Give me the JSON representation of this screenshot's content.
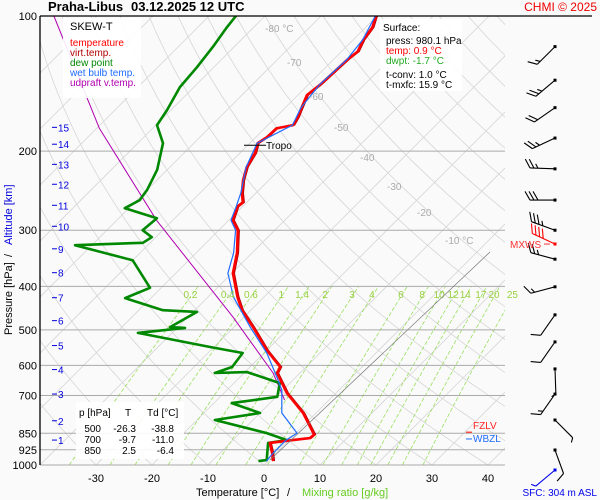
{
  "header": {
    "station": "Praha-Libus",
    "datetime": "03.12.2025 12 UTC",
    "copyright": "CHMI © 2025"
  },
  "legend": {
    "title": "SKEW-T",
    "items": [
      {
        "label": "temperature",
        "color": "#ff0000"
      },
      {
        "label": "virt.temp.",
        "color": "#b00000"
      },
      {
        "label": "dew point",
        "color": "#008800"
      },
      {
        "label": "wet bulb temp.",
        "color": "#1e6cff"
      },
      {
        "label": "udpraft v.temp.",
        "color": "#b000b0"
      }
    ]
  },
  "surface": {
    "title": "Surface:",
    "press": "press: 980.1 hPa",
    "temp": "temp: 0.9 °C",
    "dwpt": "dwpt: -1.7 °C",
    "tconv": "t-conv: 1.0 °C",
    "tmxfc": "t-mxfc: 15.9 °C"
  },
  "table": {
    "headers": [
      "p [hPa]",
      "T",
      "Td [°C]"
    ],
    "rows": [
      [
        "500",
        "-26.3",
        "-38.8"
      ],
      [
        "700",
        "-9.7",
        "-11.0"
      ],
      [
        "850",
        "2.5",
        "-6.4"
      ]
    ]
  },
  "levels": {
    "mxws": "MXWS",
    "fzlv": "FZLV",
    "wbzl": "WBZL",
    "tropo": "Tropo",
    "tropo_p": 194
  },
  "footer": {
    "sfc": "SFC: 304 m ASL"
  },
  "chart_data": {
    "type": "line",
    "subtype": "skew-T log-p",
    "xlabel": "Temperature [°C]",
    "xlabel_sep": "/",
    "xlabel2": "Mixing ratio [g/kg]",
    "ylabel": "Pressure [hPa]",
    "ylabel_sep": "/",
    "ylabel2": "Altitude [km]",
    "x_ticks": [
      -30,
      -20,
      -10,
      0,
      10,
      20,
      30,
      40
    ],
    "y_ticks": [
      100,
      200,
      300,
      400,
      500,
      600,
      700,
      850,
      925,
      1000
    ],
    "y_scale": "log",
    "ylim": [
      1000,
      100
    ],
    "xlim_at_1000hPa": [
      -40,
      45
    ],
    "altitude_ticks_km": [
      1,
      2,
      3,
      4,
      5,
      6,
      7,
      8,
      9,
      10,
      11,
      12,
      13,
      14,
      15
    ],
    "altitude_tick_pressures": [
      880,
      797,
      695,
      613,
      542,
      477,
      424,
      373,
      330,
      294,
      264,
      237,
      214,
      193,
      177
    ],
    "isotherm_labels": [
      "-80 °C",
      "-70",
      "-60",
      "-50",
      "-40",
      "-30",
      "-20",
      "-10 °C"
    ],
    "isotherm_label_values": [
      -80,
      -70,
      -60,
      -50,
      -40,
      -30,
      -20,
      -10
    ],
    "mixing_ratio_labels": [
      "0.2",
      "0.4",
      "0.6",
      "1",
      "1.4",
      "2",
      "3",
      "4",
      "6",
      "8",
      "10",
      "12",
      "14",
      "17",
      "20",
      "25"
    ],
    "colors": {
      "temp": "#ff0000",
      "virt": "#b00000",
      "dew": "#008800",
      "wetbulb": "#1e6cff",
      "parcel": "#b000b0",
      "mixing": "#99e060",
      "grid": "#d6d6d6",
      "isobar": "#aaaaaa",
      "alt": "#0000dd"
    },
    "series": [
      {
        "name": "temperature",
        "p": [
          100,
          106,
          113,
          120,
          125,
          134,
          142,
          150,
          160,
          168,
          175,
          178,
          186,
          192,
          202,
          217,
          232,
          248,
          260,
          266,
          285,
          300,
          337,
          374,
          422,
          452,
          493,
          555,
          605,
          624,
          691,
          766,
          855,
          871,
          880,
          893,
          940,
          980
        ],
        "t": [
          -60.2,
          -58.8,
          -58.2,
          -57.1,
          -57.5,
          -57.7,
          -57.9,
          -58.4,
          -57.1,
          -56.1,
          -55.5,
          -57.9,
          -58.0,
          -58.6,
          -57.3,
          -56.3,
          -54.6,
          -52.5,
          -50.7,
          -50.9,
          -49.3,
          -46.6,
          -42.7,
          -39.8,
          -34.8,
          -31.6,
          -26.6,
          -20.0,
          -14.6,
          -14.1,
          -8.8,
          -2.3,
          3.5,
          3.4,
          0.7,
          -2.9,
          -0.7,
          0.9
        ]
      },
      {
        "name": "dew point",
        "p": [
          100,
          106,
          117,
          130,
          144,
          162,
          175,
          192,
          220,
          244,
          257,
          268,
          282,
          300,
          311,
          320,
          324,
          350,
          403,
          425,
          452,
          456,
          493,
          495,
          508,
          546,
          563,
          605,
          624,
          621,
          657,
          705,
          728,
          766,
          794,
          849,
          880,
          893,
          975,
          980
        ],
        "t": [
          -85.2,
          -84.8,
          -83.8,
          -83.0,
          -82.5,
          -80.7,
          -79.8,
          -75.5,
          -71.8,
          -70.0,
          -69.5,
          -70.7,
          -63.2,
          -63.6,
          -60.7,
          -61.3,
          -73.0,
          -60.0,
          -52.0,
          -54.6,
          -45.7,
          -39.3,
          -41.4,
          -38.6,
          -46.1,
          -30.7,
          -23.8,
          -23.2,
          -25.2,
          -19.6,
          -11.8,
          -9.8,
          -16.8,
          -10.0,
          -16.8,
          -5.2,
          -0.4,
          -3.2,
          -0.4,
          -1.7
        ]
      },
      {
        "name": "wet bulb temp.",
        "p": [
          100,
          113,
          125,
          142,
          160,
          175,
          192,
          217,
          248,
          266,
          285,
          300,
          337,
          374,
          422,
          493,
          563,
          637,
          681,
          766,
          849,
          880,
          940,
          980
        ],
        "t": [
          -60.3,
          -58.3,
          -57.6,
          -58.0,
          -57.2,
          -55.6,
          -58.7,
          -56.4,
          -52.7,
          -51.1,
          -49.6,
          -47.0,
          -43.3,
          -40.7,
          -35.5,
          -27.1,
          -19.5,
          -13.4,
          -10.2,
          -6.1,
          0.2,
          -0.5,
          -0.5,
          -0.3
        ]
      },
      {
        "name": "udpraft v.temp.",
        "p": [
          100,
          178,
          285,
          468,
          624,
          717
        ],
        "t": [
          -117.7,
          -89.5,
          -62.9,
          -32.0,
          -14.8,
          -7.9
        ]
      }
    ],
    "winds": [
      {
        "p": 117,
        "dir": 225,
        "kt": 15
      },
      {
        "p": 139,
        "dir": 230,
        "kt": 25
      },
      {
        "p": 160,
        "dir": 235,
        "kt": 20
      },
      {
        "p": 187,
        "dir": 245,
        "kt": 25
      },
      {
        "p": 219,
        "dir": 272,
        "kt": 25
      },
      {
        "p": 257,
        "dir": 270,
        "kt": 30
      },
      {
        "p": 300,
        "dir": 290,
        "kt": 35
      },
      {
        "p": 322,
        "dir": 295,
        "kt": 40,
        "max": true
      },
      {
        "p": 348,
        "dir": 285,
        "kt": 25
      },
      {
        "p": 401,
        "dir": 255,
        "kt": 15
      },
      {
        "p": 463,
        "dir": 215,
        "kt": 10
      },
      {
        "p": 532,
        "dir": 215,
        "kt": 10
      },
      {
        "p": 611,
        "dir": 178,
        "kt": 5
      },
      {
        "p": 695,
        "dir": 215,
        "kt": 15
      },
      {
        "p": 794,
        "dir": 135,
        "kt": 3
      },
      {
        "p": 926,
        "dir": 160,
        "kt": 10
      },
      {
        "p": 980,
        "dir": 230,
        "kt": 5,
        "surface": true
      }
    ],
    "mxws_p": 322,
    "fzlv_p": 845,
    "wbzl_p": 875
  }
}
